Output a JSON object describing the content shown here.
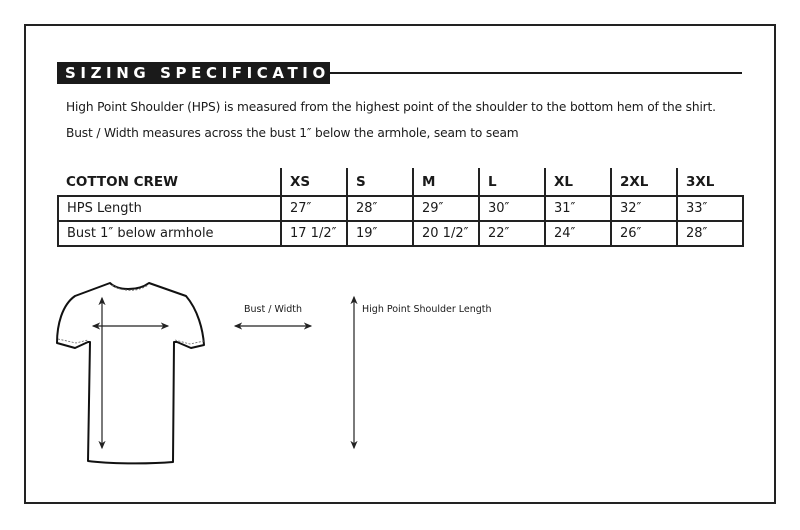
{
  "title": "SIZING SPECIFICATIONS",
  "descriptions": [
    "High Point Shoulder (HPS) is measured from the highest point of the shoulder to the bottom hem of the shirt.",
    "Bust / Width measures across the bust 1″ below the armhole, seam to seam"
  ],
  "table": {
    "headers": [
      "COTTON CREW",
      "XS",
      "S",
      "M",
      "L",
      "XL",
      "2XL",
      "3XL"
    ],
    "rows": [
      [
        "HPS Length",
        "27″",
        "28″",
        "29″",
        "30″",
        "31″",
        "32″",
        "33″"
      ],
      [
        "Bust 1″ below armhole",
        "17 1/2″",
        "19″",
        "20 1/2″",
        "22″",
        "24″",
        "26″",
        "28″"
      ]
    ]
  },
  "diagram": {
    "icon": "tshirt-icon",
    "bust_label": "Bust / Width",
    "hps_label": "High Point Shoulder Length"
  }
}
